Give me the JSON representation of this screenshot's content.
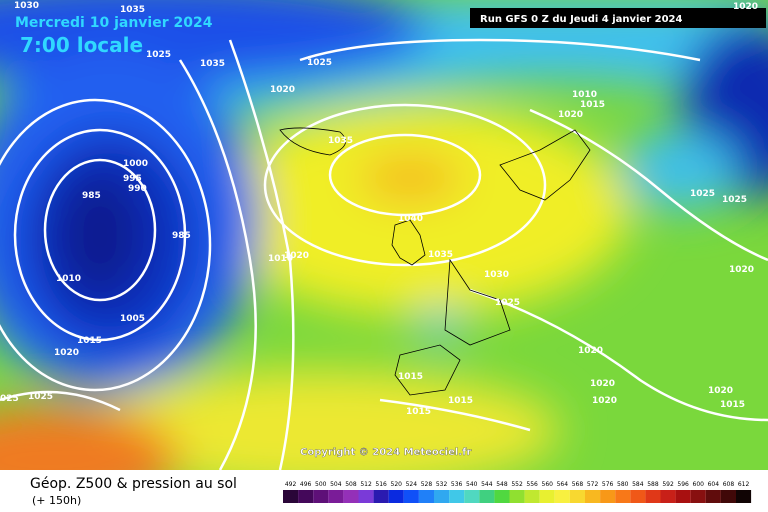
{
  "header": {
    "date": "Mercredi 10 janvier 2024",
    "time": "7:00 locale",
    "run": "Run GFS 0 Z du Jeudi 4 janvier 2024"
  },
  "copyright": "Copyright © 2024 Meteociel.fr",
  "footer": {
    "title": "Géop. Z500 & pression au sol",
    "subtitle": "(+ 150h)"
  },
  "isobar_labels": [
    "1030",
    "1035",
    "1025",
    "1035",
    "1025",
    "1020",
    "1010",
    "1015",
    "1020",
    "1035",
    "1000",
    "995",
    "990",
    "985",
    "985",
    "1040",
    "1035",
    "1010",
    "1020",
    "1030",
    "1025",
    "1010",
    "1005",
    "1015",
    "1020",
    "1025",
    "1025",
    "1020",
    "1020",
    "1015",
    "1020",
    "1020",
    "1020",
    "1015",
    "1015",
    "1015",
    "1025",
    "025",
    "1020"
  ],
  "legend": {
    "labels": [
      "492",
      "496",
      "500",
      "504",
      "508",
      "512",
      "516",
      "520",
      "524",
      "528",
      "532",
      "536",
      "540",
      "544",
      "548",
      "552",
      "556",
      "560",
      "564",
      "568",
      "572",
      "576",
      "580",
      "584",
      "588",
      "592",
      "596",
      "600",
      "604",
      "608",
      "612"
    ],
    "colors": [
      "#2a0638",
      "#44085a",
      "#5e1078",
      "#7a1c98",
      "#9430b8",
      "#7a3ad8",
      "#2a1ab0",
      "#0a2ae0",
      "#1050f8",
      "#2080f8",
      "#30a8f0",
      "#40c8e8",
      "#50d8c0",
      "#40d080",
      "#50d840",
      "#90e030",
      "#c0e830",
      "#e8f030",
      "#f8f040",
      "#f8d830",
      "#f8b820",
      "#f89818",
      "#f87818",
      "#f05818",
      "#e03818",
      "#c82018",
      "#a81010",
      "#881010",
      "#600c0c",
      "#400808",
      "#100404"
    ]
  }
}
